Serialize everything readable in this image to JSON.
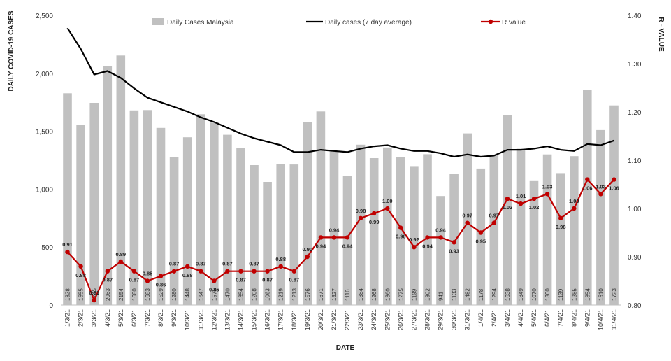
{
  "chart_data": {
    "type": "bar",
    "title": "",
    "xlabel": "DATE",
    "ylabel": "DAILY COVID-19 CASES",
    "y2label": "R - VALUE",
    "ylim": [
      0,
      2500
    ],
    "y2lim": [
      0.8,
      1.4
    ],
    "yticks": [
      "0",
      "500",
      "1,000",
      "1,500",
      "2,000",
      "2,500"
    ],
    "y2ticks": [
      "0.80",
      "0.90",
      "1.00",
      "1.10",
      "1.20",
      "1.30",
      "1.40"
    ],
    "legend_position": "top",
    "grid": false,
    "categories": [
      "1/3/21",
      "2/3/21",
      "3/3/21",
      "4/3/21",
      "5/3/21",
      "6/3/21",
      "7/3/21",
      "8/3/21",
      "9/3/21",
      "10/3/21",
      "11/3/21",
      "12/3/21",
      "13/3/21",
      "14/3/21",
      "15/3/21",
      "16/3/21",
      "17/3/21",
      "18/3/21",
      "19/3/21",
      "20/3/21",
      "21/3/21",
      "22/3/21",
      "23/3/21",
      "24/3/21",
      "25/3/21",
      "26/3/21",
      "27/3/21",
      "28/3/21",
      "29/3/21",
      "30/3/21",
      "31/3/21",
      "1/4/21",
      "2/4/21",
      "3/4/21",
      "4/4/21",
      "5/4/21",
      "6/4/21",
      "7/4/21",
      "8/4/21",
      "9/4/21",
      "10/4/21",
      "11/4/21"
    ],
    "series": [
      {
        "name": "Daily Cases Malaysia",
        "type": "bar",
        "axis": "left",
        "color": "#c0c0c0",
        "values": [
          1828,
          1555,
          1745,
          2063,
          2154,
          1680,
          1683,
          1529,
          1280,
          1448,
          1647,
          1575,
          1470,
          1354,
          1208,
          1063,
          1219,
          1213,
          1576,
          1671,
          1327,
          1116,
          1384,
          1268,
          1360,
          1275,
          1199,
          1302,
          941,
          1133,
          1482,
          1178,
          1294,
          1638,
          1349,
          1070,
          1300,
          1139,
          1285,
          1854,
          1510,
          1723
        ]
      },
      {
        "name": "Daily cases (7 day average)",
        "type": "line",
        "axis": "left",
        "color": "#000000",
        "values": [
          2390,
          2210,
          1990,
          2020,
          1960,
          1870,
          1790,
          1750,
          1710,
          1670,
          1620,
          1580,
          1530,
          1480,
          1440,
          1410,
          1380,
          1320,
          1320,
          1340,
          1330,
          1320,
          1350,
          1370,
          1380,
          1350,
          1330,
          1330,
          1310,
          1280,
          1300,
          1280,
          1290,
          1340,
          1340,
          1350,
          1370,
          1340,
          1330,
          1390,
          1380,
          1420
        ]
      },
      {
        "name": "R value",
        "type": "line-markers",
        "axis": "right",
        "color": "#c00000",
        "values": [
          0.91,
          0.88,
          0.81,
          0.87,
          0.89,
          0.87,
          0.85,
          0.86,
          0.87,
          0.88,
          0.87,
          0.85,
          0.87,
          0.87,
          0.87,
          0.87,
          0.88,
          0.87,
          0.9,
          0.94,
          0.94,
          0.94,
          0.98,
          0.99,
          1.0,
          0.96,
          0.92,
          0.94,
          0.94,
          0.93,
          0.97,
          0.95,
          0.97,
          1.02,
          1.01,
          1.02,
          1.03,
          0.98,
          1.0,
          1.06,
          1.03,
          1.06
        ]
      }
    ]
  }
}
